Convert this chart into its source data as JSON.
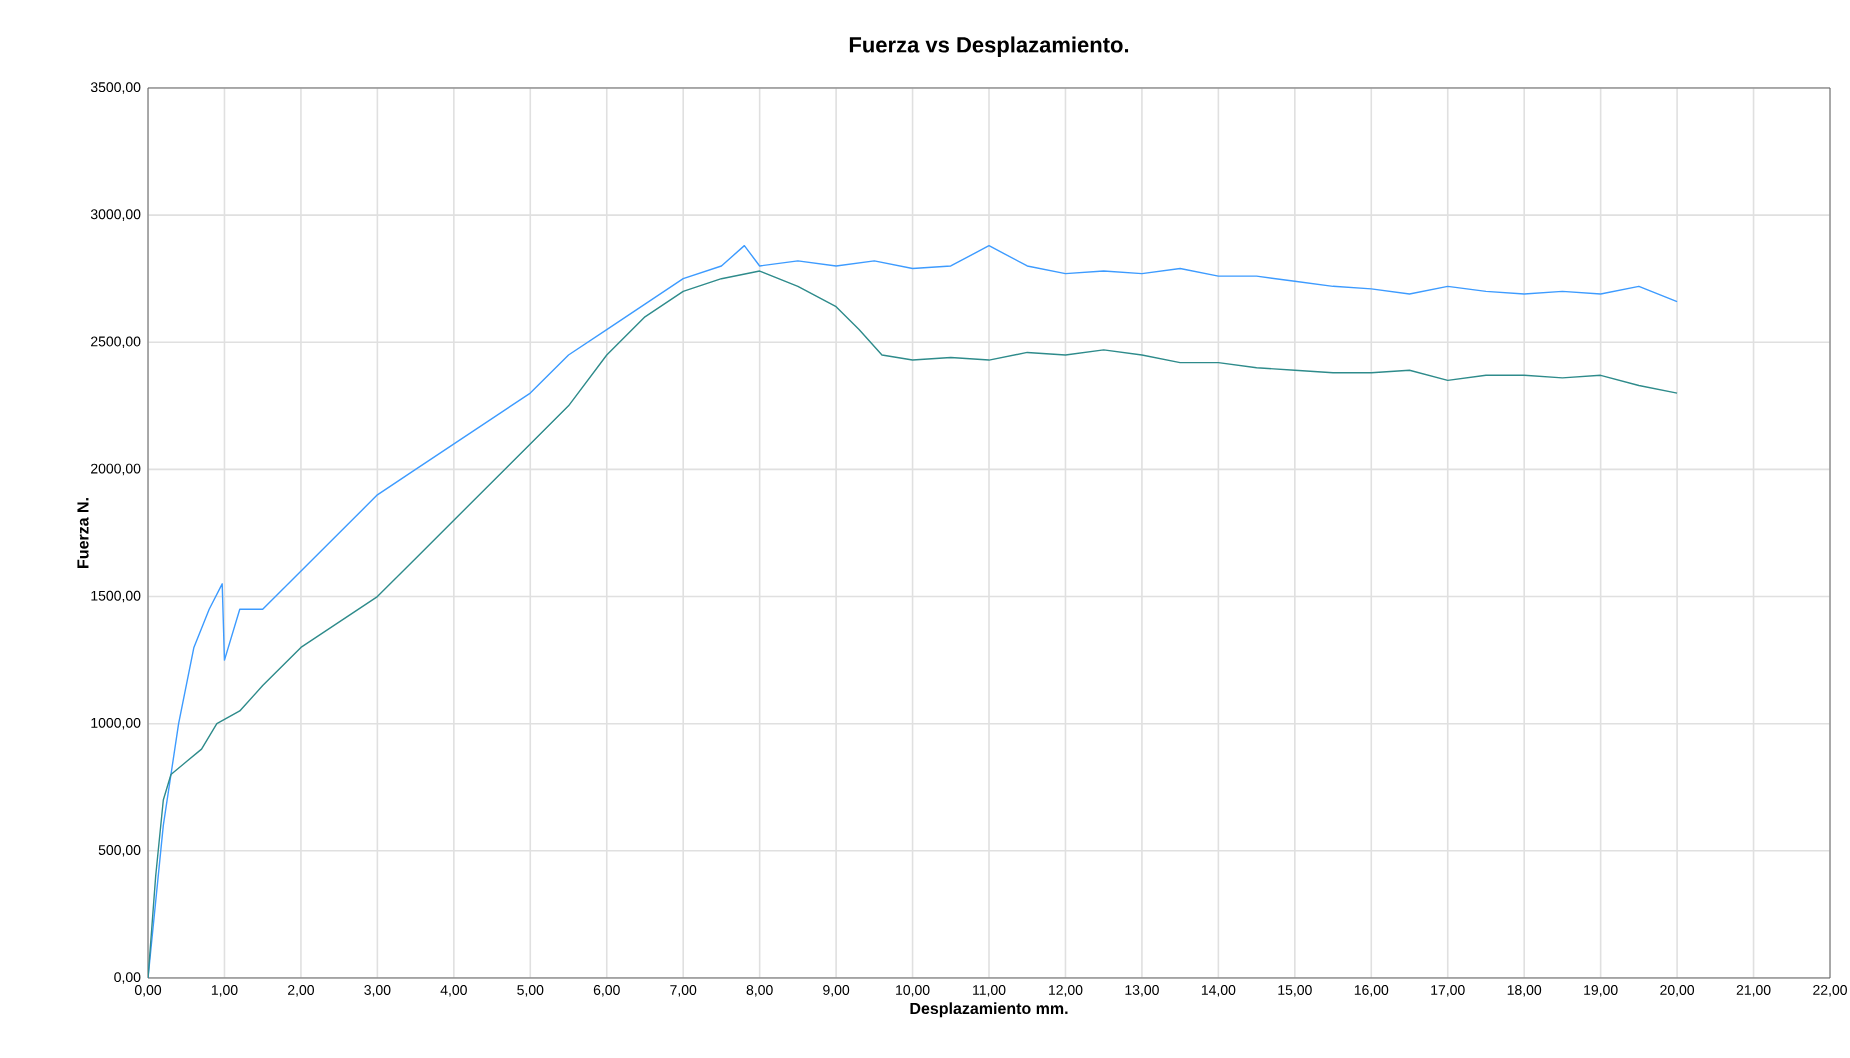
{
  "chart_data": {
    "type": "line",
    "title": "Fuerza vs Desplazamiento.",
    "xlabel": "Desplazamiento mm.",
    "ylabel": "Fuerza N.",
    "xlim": [
      0,
      22
    ],
    "ylim": [
      0,
      3500
    ],
    "xticks": [
      {
        "value": 0,
        "label": "0,00"
      },
      {
        "value": 1,
        "label": "1,00"
      },
      {
        "value": 2,
        "label": "2,00"
      },
      {
        "value": 3,
        "label": "3,00"
      },
      {
        "value": 4,
        "label": "4,00"
      },
      {
        "value": 5,
        "label": "5,00"
      },
      {
        "value": 6,
        "label": "6,00"
      },
      {
        "value": 7,
        "label": "7,00"
      },
      {
        "value": 8,
        "label": "8,00"
      },
      {
        "value": 9,
        "label": "9,00"
      },
      {
        "value": 10,
        "label": "10,00"
      },
      {
        "value": 11,
        "label": "11,00"
      },
      {
        "value": 12,
        "label": "12,00"
      },
      {
        "value": 13,
        "label": "13,00"
      },
      {
        "value": 14,
        "label": "14,00"
      },
      {
        "value": 15,
        "label": "15,00"
      },
      {
        "value": 16,
        "label": "16,00"
      },
      {
        "value": 17,
        "label": "17,00"
      },
      {
        "value": 18,
        "label": "18,00"
      },
      {
        "value": 19,
        "label": "19,00"
      },
      {
        "value": 20,
        "label": "20,00"
      },
      {
        "value": 21,
        "label": "21,00"
      },
      {
        "value": 22,
        "label": "22,00"
      }
    ],
    "yticks": [
      {
        "value": 0,
        "label": "0,00"
      },
      {
        "value": 500,
        "label": "500,00"
      },
      {
        "value": 1000,
        "label": "1000,00"
      },
      {
        "value": 1500,
        "label": "1500,00"
      },
      {
        "value": 2000,
        "label": "2000,00"
      },
      {
        "value": 2500,
        "label": "2500,00"
      },
      {
        "value": 3000,
        "label": "3000,00"
      },
      {
        "value": 3500,
        "label": "3500,00"
      }
    ],
    "grid": true,
    "marker": "none",
    "line_style": "solid",
    "series": [
      {
        "color": "#3d9bff",
        "x": [
          0,
          0.1,
          0.2,
          0.4,
          0.6,
          0.8,
          0.97,
          1.0,
          1.2,
          1.5,
          2.0,
          2.5,
          3.0,
          3.5,
          4.0,
          4.5,
          5.0,
          5.5,
          6.0,
          6.5,
          7.0,
          7.5,
          7.8,
          8.0,
          8.5,
          9.0,
          9.5,
          10.0,
          10.5,
          11.0,
          11.5,
          12.0,
          12.5,
          13.0,
          13.5,
          14.0,
          14.5,
          15.0,
          15.5,
          16.0,
          16.5,
          17.0,
          17.5,
          18.0,
          18.5,
          19.0,
          19.5,
          20.0
        ],
        "values": [
          0,
          300,
          600,
          1000,
          1300,
          1450,
          1550,
          1250,
          1450,
          1450,
          1600,
          1750,
          1900,
          2000,
          2100,
          2200,
          2300,
          2450,
          2550,
          2650,
          2750,
          2800,
          2880,
          2800,
          2820,
          2800,
          2820,
          2790,
          2800,
          2880,
          2800,
          2770,
          2780,
          2770,
          2790,
          2760,
          2760,
          2740,
          2720,
          2710,
          2690,
          2720,
          2700,
          2690,
          2700,
          2690,
          2720,
          2660
        ]
      },
      {
        "color": "#2e8b8b",
        "x": [
          0,
          0.1,
          0.2,
          0.3,
          0.5,
          0.7,
          0.9,
          1.2,
          1.5,
          2.0,
          2.5,
          3.0,
          3.5,
          4.0,
          4.5,
          5.0,
          5.5,
          6.0,
          6.5,
          7.0,
          7.5,
          8.0,
          8.5,
          9.0,
          9.3,
          9.6,
          10.0,
          10.5,
          11.0,
          11.5,
          12.0,
          12.5,
          13.0,
          13.5,
          14.0,
          14.5,
          15.0,
          15.5,
          16.0,
          16.5,
          17.0,
          17.5,
          18.0,
          18.5,
          19.0,
          19.5,
          20.0
        ],
        "values": [
          0,
          400,
          700,
          800,
          850,
          900,
          1000,
          1050,
          1150,
          1300,
          1400,
          1500,
          1650,
          1800,
          1950,
          2100,
          2250,
          2450,
          2600,
          2700,
          2750,
          2780,
          2720,
          2640,
          2550,
          2450,
          2430,
          2440,
          2430,
          2460,
          2450,
          2470,
          2450,
          2420,
          2420,
          2400,
          2390,
          2380,
          2380,
          2390,
          2350,
          2370,
          2370,
          2360,
          2370,
          2330,
          2300
        ]
      }
    ]
  }
}
